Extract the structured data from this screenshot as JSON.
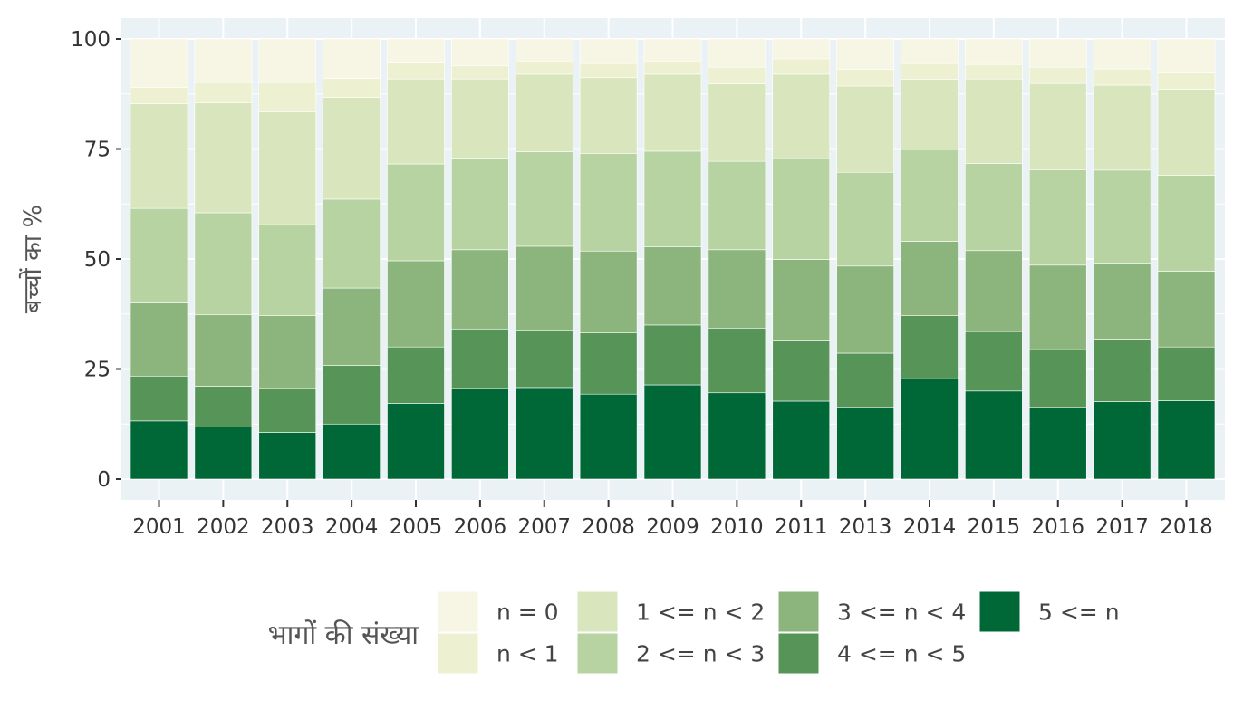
{
  "chart_data": {
    "type": "bar",
    "stacked": true,
    "ylabel": "बच्चों का %",
    "xlabel": "",
    "ylim": [
      0,
      100
    ],
    "yticks": [
      "0",
      "25",
      "50",
      "75",
      "100"
    ],
    "grid": true,
    "legend_position": "bottom",
    "legend_title": "भागों की संख्या",
    "categories": [
      "2001",
      "2002",
      "2003",
      "2004",
      "2005",
      "2006",
      "2007",
      "2008",
      "2009",
      "2010",
      "2011",
      "2013",
      "2014",
      "2015",
      "2016",
      "2017",
      "2018"
    ],
    "series": [
      {
        "name": "5 <= n",
        "color": "#006837",
        "values": [
          13.2,
          11.8,
          10.6,
          12.5,
          17.2,
          20.6,
          20.8,
          19.3,
          21.4,
          19.6,
          17.7,
          16.3,
          22.8,
          20.0,
          16.3,
          17.6,
          17.8
        ]
      },
      {
        "name": "4 <= n < 5",
        "color": "#569458",
        "values": [
          10.2,
          9.3,
          10.0,
          13.3,
          12.8,
          13.5,
          13.0,
          13.9,
          13.6,
          14.7,
          13.9,
          12.3,
          14.3,
          13.5,
          13.1,
          14.2,
          12.2
        ]
      },
      {
        "name": "3 <= n < 4",
        "color": "#8cb57d",
        "values": [
          16.6,
          16.2,
          16.5,
          17.6,
          19.6,
          18.0,
          19.1,
          18.6,
          17.8,
          17.8,
          18.3,
          19.8,
          16.9,
          18.4,
          19.2,
          17.3,
          17.2
        ]
      },
      {
        "name": "2 <= n < 3",
        "color": "#b7d3a1",
        "values": [
          21.5,
          23.2,
          20.7,
          20.2,
          22.0,
          20.6,
          21.5,
          22.2,
          21.7,
          20.1,
          22.9,
          21.3,
          20.9,
          19.8,
          21.7,
          21.1,
          21.8
        ]
      },
      {
        "name": "1 <= n < 2",
        "color": "#d9e6bd",
        "values": [
          23.8,
          25.0,
          25.6,
          23.1,
          19.3,
          18.2,
          17.6,
          17.2,
          17.5,
          17.6,
          19.2,
          19.6,
          15.9,
          19.2,
          19.6,
          19.3,
          19.6
        ]
      },
      {
        "name": "n < 1",
        "color": "#eef0d2",
        "values": [
          3.7,
          4.6,
          6.7,
          4.3,
          3.6,
          3.0,
          3.0,
          3.2,
          3.0,
          3.8,
          3.5,
          3.8,
          3.6,
          3.3,
          3.7,
          3.7,
          3.7
        ]
      },
      {
        "name": "n = 0",
        "color": "#f7f6e5",
        "values": [
          11.0,
          9.9,
          9.9,
          9.0,
          5.5,
          6.1,
          5.0,
          5.6,
          5.0,
          6.4,
          4.5,
          6.9,
          5.6,
          5.8,
          6.4,
          6.8,
          7.7
        ]
      }
    ],
    "legend_order": [
      "n = 0",
      "n < 1",
      "1 <= n < 2",
      "2 <= n < 3",
      "3 <= n < 4",
      "4 <= n < 5",
      "5 <= n"
    ]
  },
  "style": {
    "panel_background": "#ebf2f6",
    "grid_color": "#ffffff"
  }
}
